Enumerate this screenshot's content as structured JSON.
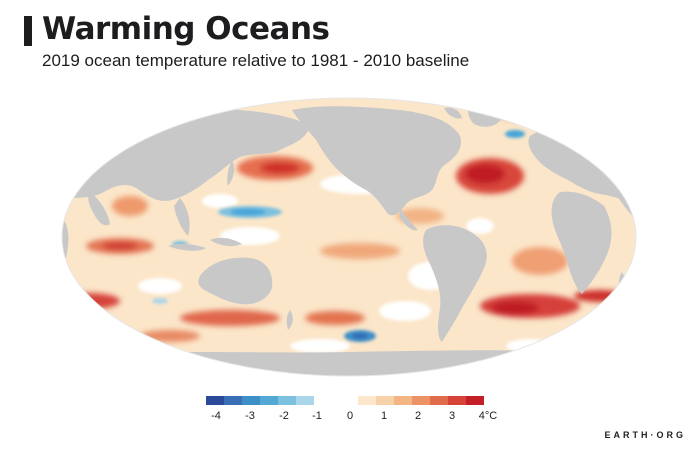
{
  "header": {
    "title": "Warming Oceans",
    "subtitle": "2019 ocean temperature relative to 1981 - 2010 baseline"
  },
  "legend": {
    "unit": "°C",
    "ticks": [
      "-4",
      "-3",
      "-2",
      "-1",
      "0",
      "1",
      "2",
      "3",
      "4°C"
    ],
    "negative_colors": [
      "#2b4a9a",
      "#3a6fb6",
      "#3f8fc7",
      "#53a8d4",
      "#7cc1df",
      "#a9d6e8"
    ],
    "positive_colors": [
      "#fbe8cc",
      "#f7d2a8",
      "#f2b583",
      "#ec9265",
      "#e06c4d",
      "#d64337",
      "#c41f26"
    ]
  },
  "map": {
    "land_color": "#c8c8c8",
    "ocean_base_color": "#fbe6c9",
    "warm_color": "#d3312b",
    "cool_color": "#4aa6d8",
    "neutral_color": "#ffffff"
  },
  "footer": {
    "brand": "EARTH·ORG"
  }
}
